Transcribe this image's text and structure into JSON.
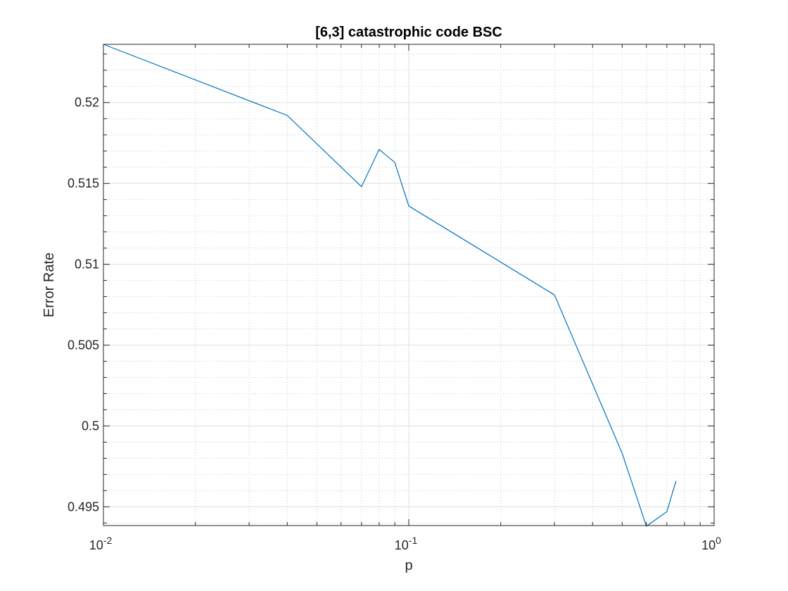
{
  "chart_data": {
    "type": "line",
    "title": "[6,3] catastrophic code BSC",
    "xlabel": "p",
    "ylabel": "Error Rate",
    "xscale": "log",
    "xlim": [
      0.01,
      1
    ],
    "ylim": [
      0.49384,
      0.5236
    ],
    "x_ticks": [
      {
        "value": 0.01,
        "base": "10",
        "exp": "-2"
      },
      {
        "value": 0.1,
        "base": "10",
        "exp": "-1"
      },
      {
        "value": 1,
        "base": "10",
        "exp": "0"
      }
    ],
    "y_ticks": [
      {
        "value": 0.495,
        "label": "0.495"
      },
      {
        "value": 0.5,
        "label": "0.5"
      },
      {
        "value": 0.505,
        "label": "0.505"
      },
      {
        "value": 0.51,
        "label": "0.51"
      },
      {
        "value": 0.515,
        "label": "0.515"
      },
      {
        "value": 0.52,
        "label": "0.52"
      }
    ],
    "grid": true,
    "minor_grid": true,
    "series": [
      {
        "color": "#0072BD",
        "x": [
          0.01,
          0.04,
          0.07,
          0.08,
          0.09,
          0.1,
          0.3,
          0.5,
          0.6,
          0.7,
          0.75
        ],
        "y": [
          0.5236,
          0.5192,
          0.5148,
          0.5171,
          0.5163,
          0.5136,
          0.5081,
          0.4983,
          0.4938,
          0.4947,
          0.4966
        ]
      }
    ]
  }
}
